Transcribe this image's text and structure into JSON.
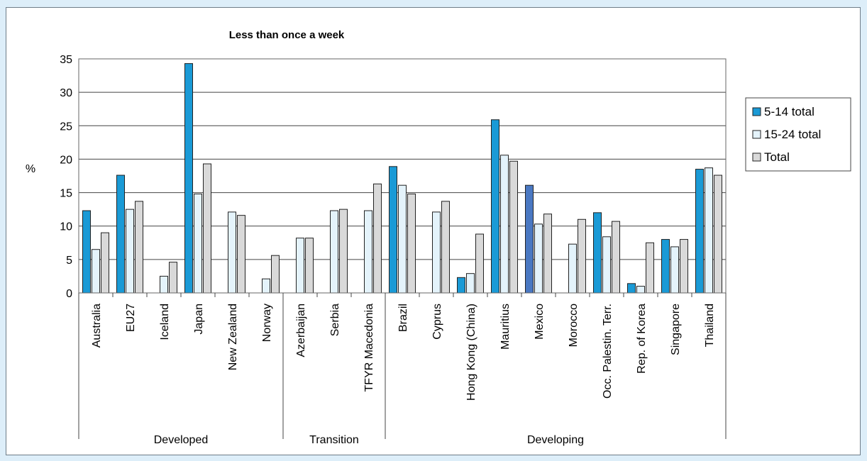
{
  "chart_data": {
    "type": "bar",
    "title": "Less than once a week",
    "ylabel": "%",
    "ylim": [
      0,
      35
    ],
    "yticks": [
      0,
      5,
      10,
      15,
      20,
      25,
      30,
      35
    ],
    "grid": true,
    "legend_position": "right",
    "categories": [
      "Australia",
      "EU27",
      "Iceland",
      "Japan",
      "New Zealand",
      "Norway",
      "Azerbaijan",
      "Serbia",
      "TFYR Macedonia",
      "Brazil",
      "Cyprus",
      "Hong Kong (China)",
      "Mauritius",
      "Mexico",
      "Morocco",
      "Occ. Palestin. Terr.",
      "Rep. of Korea",
      "Singapore",
      "Thailand"
    ],
    "groups": [
      {
        "label": "Developed",
        "start": 0,
        "end": 5
      },
      {
        "label": "Transition",
        "start": 6,
        "end": 8
      },
      {
        "label": "Developing",
        "start": 9,
        "end": 18
      }
    ],
    "series": [
      {
        "name": "5-14 total",
        "color": "#1a9ad6",
        "values": [
          12.3,
          17.6,
          null,
          34.3,
          null,
          null,
          null,
          null,
          null,
          18.9,
          null,
          2.3,
          25.9,
          16.1,
          null,
          12.0,
          1.4,
          8.0,
          18.5
        ]
      },
      {
        "name": "15-24 total",
        "color": "#e4f3fb",
        "values": [
          6.5,
          12.5,
          2.5,
          14.8,
          12.1,
          2.1,
          8.2,
          12.3,
          12.3,
          16.1,
          12.1,
          2.9,
          20.6,
          10.3,
          7.3,
          8.4,
          1.0,
          6.9,
          18.7
        ]
      },
      {
        "name": "Total",
        "color": "#d9d9d9",
        "values": [
          9.0,
          13.7,
          4.6,
          19.3,
          11.6,
          5.6,
          8.2,
          12.5,
          16.3,
          14.8,
          13.7,
          8.8,
          19.7,
          11.8,
          11.0,
          10.7,
          7.5,
          8.0,
          17.6
        ]
      }
    ],
    "highlight": {
      "index": 13,
      "series": 0,
      "color": "#4a78c2"
    }
  }
}
